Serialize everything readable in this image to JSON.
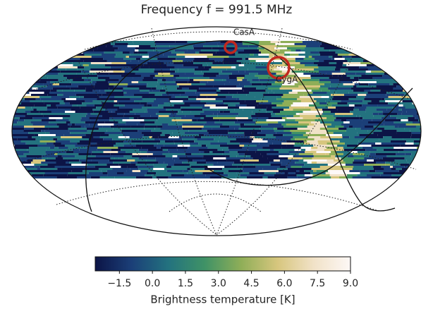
{
  "chart_data": {
    "type": "skymap",
    "title": "Frequency f = 991.5 MHz",
    "annotations": [
      {
        "text": "CasA",
        "color": "#c0281e"
      },
      {
        "text": "CygA",
        "color": "#c0281e"
      }
    ],
    "colorbar": {
      "label": "Brightness temperature [K]",
      "xlim": [
        -2.6,
        9.0
      ],
      "xticks": [
        {
          "value": -1.5,
          "label": "−1.5"
        },
        {
          "value": 0,
          "label": "0.0"
        },
        1.5,
        {
          "value": 3,
          "label": "3.0"
        },
        4.5,
        {
          "value": 6,
          "label": "6.0"
        },
        7.5,
        {
          "value": 9,
          "label": "9.0"
        }
      ],
      "colormap": [
        "#0c1446",
        "#1b3f78",
        "#23727f",
        "#3f9266",
        "#8fae58",
        "#d7c67e",
        "#f1e2c8",
        "#fdf8f6"
      ]
    }
  }
}
